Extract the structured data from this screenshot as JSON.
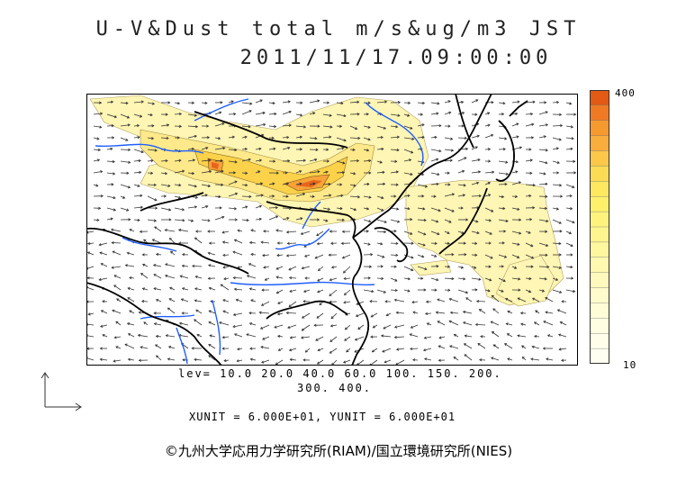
{
  "header": {
    "title_line1": "U-V&Dust total m/s&ug/m3 JST",
    "title_line2": "2011/11/17.09:00:00"
  },
  "colorbar": {
    "max_label": "400",
    "min_label": "10",
    "colors": [
      "#e25a14",
      "#f07a24",
      "#f6992f",
      "#f8ad3c",
      "#fbc84a",
      "#fddc55",
      "#fee860",
      "#fff06c",
      "#fff37e",
      "#fff58e",
      "#fff7a0",
      "#fff8b0",
      "#fff9be",
      "#fffbcc",
      "#fffcd8",
      "#fffde2",
      "#fffeea",
      "#fffff0"
    ]
  },
  "levels": {
    "line1": "lev= 10.0 20.0 40.0 60.0 100. 150. 200.",
    "line2": "300. 400."
  },
  "units": {
    "text": "XUNIT = 6.000E+01, YUNIT = 6.000E+01"
  },
  "footer": {
    "copyright": "©九州大学応用力学研究所(RIAM)/国立環境研究所(NIES)"
  },
  "map": {
    "dust_colors": {
      "pale": "#fff5b4",
      "light": "#ffe98a",
      "mid": "#fbd24a",
      "orange": "#f5a33a",
      "red": "#e8641c"
    },
    "coast_color": "#000000",
    "river_color": "#1f5fff"
  }
}
